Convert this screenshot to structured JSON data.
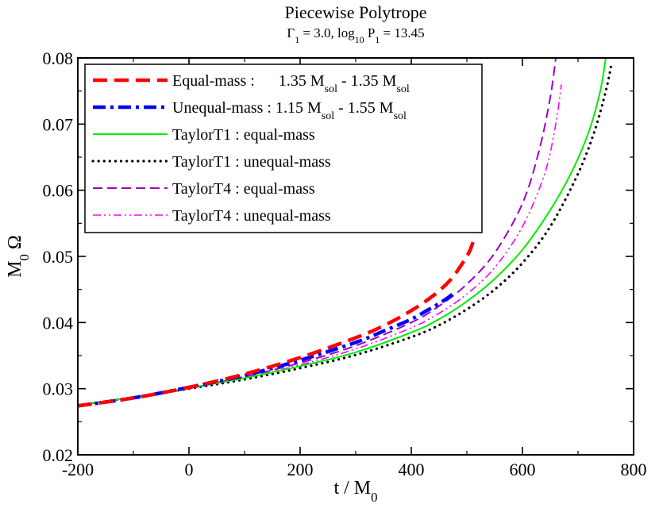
{
  "chart_data": {
    "type": "line",
    "title": "Piecewise Polytrope",
    "subtitle": {
      "parts": [
        {
          "t": "Γ",
          "s": "normal"
        },
        {
          "t": "1",
          "s": "sub"
        },
        {
          "t": " = 3.0,  log",
          "s": "normal"
        },
        {
          "t": "10",
          "s": "sub"
        },
        {
          "t": " P",
          "s": "normal"
        },
        {
          "t": "1",
          "s": "sub"
        },
        {
          "t": " = 13.45",
          "s": "normal"
        }
      ]
    },
    "xlabel": {
      "parts": [
        {
          "t": "t / M",
          "s": "normal"
        },
        {
          "t": "0",
          "s": "sub"
        }
      ]
    },
    "ylabel": {
      "parts": [
        {
          "t": "M",
          "s": "normal"
        },
        {
          "t": "0",
          "s": "sub"
        },
        {
          "t": " Ω",
          "s": "normal"
        }
      ]
    },
    "xlim": [
      -200,
      800
    ],
    "ylim": [
      0.02,
      0.08
    ],
    "xticks": [
      -200,
      0,
      200,
      400,
      600,
      800
    ],
    "xtick_labels": [
      "-200",
      "0",
      "200",
      "400",
      "600",
      "800"
    ],
    "yticks": [
      0.02,
      0.03,
      0.04,
      0.05,
      0.06,
      0.07,
      0.08
    ],
    "ytick_labels": [
      "0.02",
      "0.03",
      "0.04",
      "0.05",
      "0.06",
      "0.07",
      "0.08"
    ],
    "legend_position": "top-left",
    "series": [
      {
        "id": "equal-mass",
        "color": "#ff0000",
        "style": "dashed-thick",
        "label_parts": [
          {
            "t": "Equal-mass :      1.35 M",
            "s": "normal"
          },
          {
            "t": "sol",
            "s": "sub"
          },
          {
            "t": " - 1.35 M",
            "s": "normal"
          },
          {
            "t": "sol",
            "s": "sub"
          }
        ],
        "x": [
          -200,
          -100,
          0,
          100,
          200,
          300,
          350,
          400,
          440,
          470,
          490,
          505,
          515
        ],
        "y": [
          0.0274,
          0.0286,
          0.0302,
          0.0322,
          0.0347,
          0.0377,
          0.0395,
          0.0418,
          0.0441,
          0.0464,
          0.0487,
          0.0508,
          0.0532
        ]
      },
      {
        "id": "unequal-mass",
        "color": "#0000ff",
        "style": "dashdot-thick",
        "label_parts": [
          {
            "t": "Unequal-mass : 1.15 M",
            "s": "normal"
          },
          {
            "t": "sol",
            "s": "sub"
          },
          {
            "t": " - 1.55 M",
            "s": "normal"
          },
          {
            "t": "sol",
            "s": "sub"
          }
        ],
        "x": [
          -200,
          -100,
          0,
          100,
          200,
          300,
          350,
          400,
          430,
          460,
          480
        ],
        "y": [
          0.0274,
          0.0286,
          0.0302,
          0.032,
          0.0343,
          0.037,
          0.0387,
          0.0405,
          0.0419,
          0.0434,
          0.0447
        ]
      },
      {
        "id": "taylort1-equal",
        "color": "#00ee00",
        "style": "solid",
        "label_parts": [
          {
            "t": "TaylorT1 : equal-mass",
            "s": "normal"
          }
        ],
        "x": [
          -200,
          -100,
          0,
          100,
          200,
          300,
          400,
          450,
          500,
          550,
          600,
          650,
          690,
          720,
          740,
          750
        ],
        "y": [
          0.0275,
          0.0287,
          0.0301,
          0.0316,
          0.0334,
          0.0355,
          0.0385,
          0.0405,
          0.0432,
          0.0466,
          0.051,
          0.057,
          0.063,
          0.069,
          0.075,
          0.08
        ]
      },
      {
        "id": "taylort1-unequal",
        "color": "#000000",
        "style": "dotted",
        "label_parts": [
          {
            "t": "TaylorT1 : unequal-mass",
            "s": "normal"
          }
        ],
        "x": [
          -200,
          -100,
          0,
          100,
          200,
          300,
          400,
          450,
          500,
          550,
          600,
          650,
          700,
          730,
          750,
          760
        ],
        "y": [
          0.0275,
          0.0287,
          0.03,
          0.0314,
          0.0331,
          0.0351,
          0.0378,
          0.0396,
          0.042,
          0.045,
          0.049,
          0.0545,
          0.0625,
          0.069,
          0.075,
          0.079
        ]
      },
      {
        "id": "taylort4-equal",
        "color": "#9900cc",
        "style": "dashed",
        "label_parts": [
          {
            "t": "TaylorT4 : equal-mass",
            "s": "normal"
          }
        ],
        "x": [
          -200,
          -100,
          0,
          100,
          200,
          300,
          400,
          450,
          500,
          550,
          600,
          630,
          650,
          660
        ],
        "y": [
          0.0275,
          0.0287,
          0.0301,
          0.0318,
          0.0339,
          0.0365,
          0.04,
          0.0425,
          0.0458,
          0.0505,
          0.058,
          0.066,
          0.074,
          0.08
        ]
      },
      {
        "id": "taylort4-unequal",
        "color": "#ff00ff",
        "style": "dashdotdot",
        "label_parts": [
          {
            "t": "TaylorT4 : unequal-mass",
            "s": "normal"
          }
        ],
        "x": [
          -200,
          -100,
          0,
          100,
          200,
          300,
          400,
          450,
          500,
          550,
          600,
          640,
          660,
          670
        ],
        "y": [
          0.0275,
          0.0287,
          0.03,
          0.0316,
          0.0336,
          0.036,
          0.0392,
          0.0414,
          0.0443,
          0.0483,
          0.0545,
          0.0625,
          0.07,
          0.076
        ]
      }
    ]
  }
}
